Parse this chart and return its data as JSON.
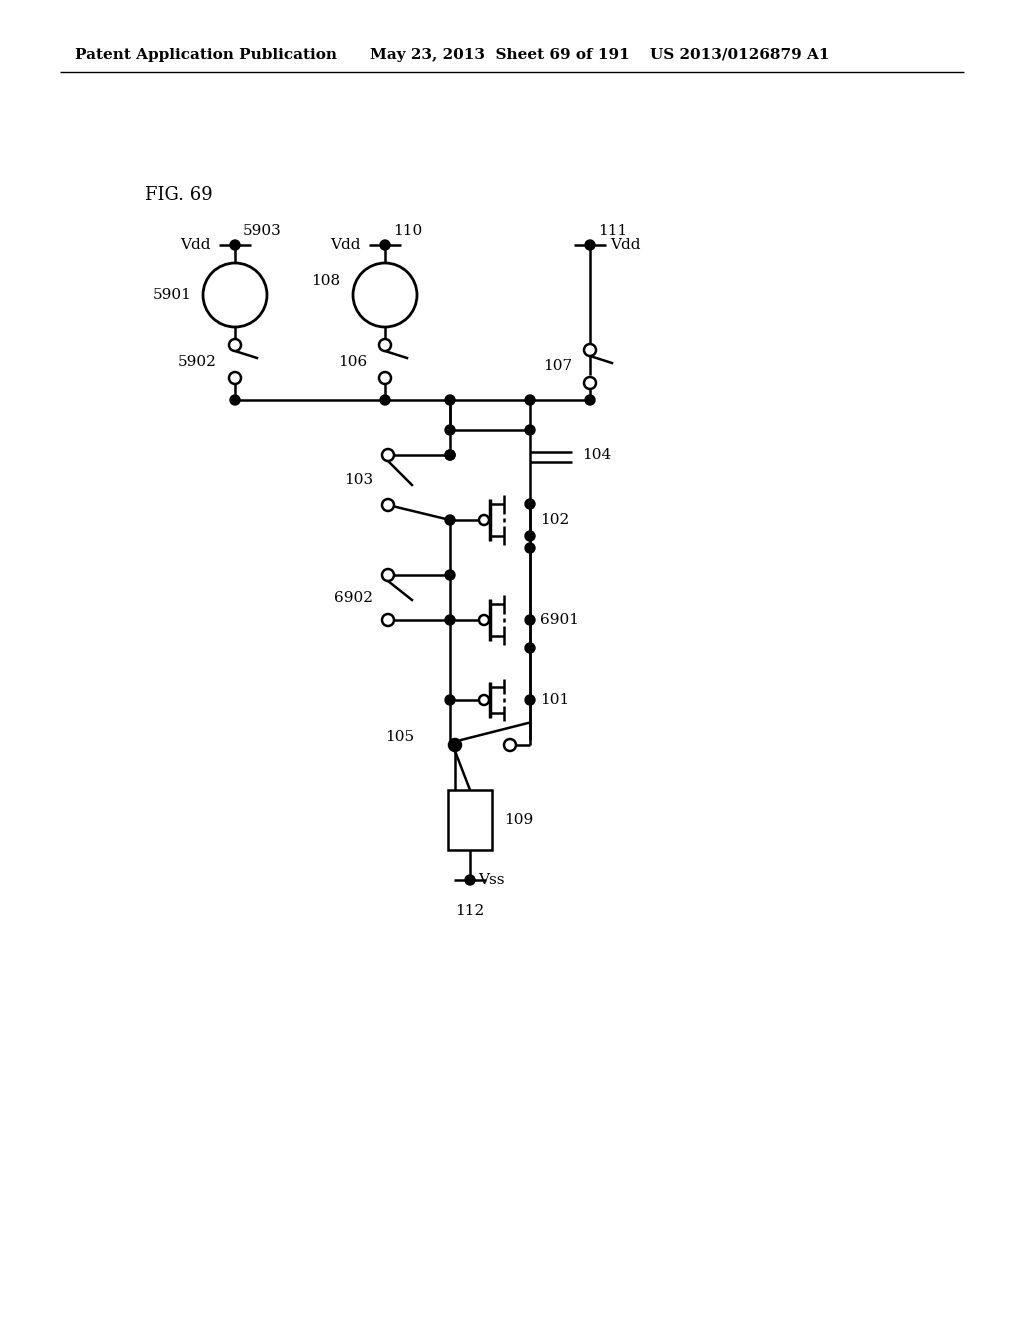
{
  "header_left": "Patent Application Publication",
  "header_mid": "May 23, 2013  Sheet 69 of 191",
  "header_right": "US 2013/0126879 A1",
  "fig_label": "FIG. 69",
  "background_color": "#ffffff",
  "line_color": "#000000"
}
